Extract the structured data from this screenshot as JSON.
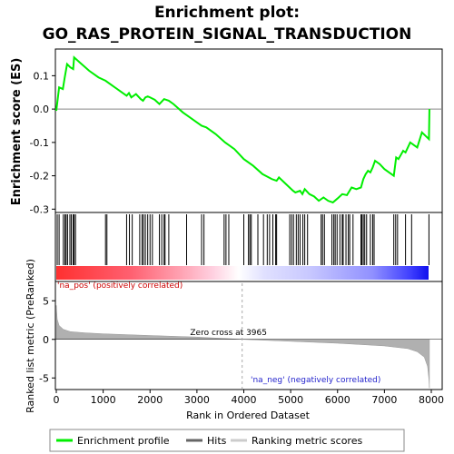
{
  "title_line1": "Enrichment plot:",
  "title_line2": "GO_RAS_PROTEIN_SIGNAL_TRANSDUCTION",
  "chart_data": {
    "type": "line",
    "x_label": "Rank in Ordered Dataset",
    "x_range": [
      0,
      8000
    ],
    "x_ticks": [
      "0",
      "1000",
      "2000",
      "3000",
      "4000",
      "5000",
      "6000",
      "7000",
      "8000"
    ],
    "x_tick_values": [
      0,
      1000,
      2000,
      3000,
      4000,
      5000,
      6000,
      7000,
      8000
    ],
    "top_panel": {
      "ylabel": "Enrichment score (ES)",
      "ylim": [
        -0.31,
        0.18
      ],
      "y_ticks": [
        "0.1",
        "0.0",
        "-0.1",
        "-0.2",
        "-0.3"
      ],
      "y_tick_values": [
        0.1,
        0.0,
        -0.1,
        -0.2,
        -0.3
      ],
      "line_color": "#00ee00",
      "series": [
        {
          "name": "Enrichment profile",
          "x": [
            0,
            60,
            140,
            180,
            230,
            300,
            360,
            380,
            500,
            700,
            900,
            1050,
            1200,
            1350,
            1500,
            1550,
            1600,
            1700,
            1800,
            1850,
            1900,
            1950,
            2000,
            2100,
            2200,
            2300,
            2400,
            2500,
            2700,
            2850,
            3000,
            3100,
            3200,
            3400,
            3600,
            3800,
            4000,
            4200,
            4400,
            4600,
            4700,
            4750,
            4900,
            5050,
            5100,
            5200,
            5250,
            5300,
            5400,
            5500,
            5600,
            5700,
            5800,
            5900,
            6000,
            6100,
            6200,
            6300,
            6400,
            6500,
            6550,
            6600,
            6650,
            6700,
            6750,
            6800,
            6900,
            7000,
            7100,
            7200,
            7250,
            7300,
            7400,
            7450,
            7550,
            7650,
            7700,
            7800,
            7950,
            7960
          ],
          "y": [
            -0.005,
            0.065,
            0.06,
            0.095,
            0.135,
            0.125,
            0.12,
            0.155,
            0.14,
            0.115,
            0.095,
            0.085,
            0.07,
            0.055,
            0.04,
            0.048,
            0.035,
            0.045,
            0.03,
            0.025,
            0.035,
            0.038,
            0.035,
            0.028,
            0.015,
            0.03,
            0.025,
            0.015,
            -0.01,
            -0.025,
            -0.04,
            -0.05,
            -0.055,
            -0.075,
            -0.1,
            -0.12,
            -0.15,
            -0.17,
            -0.195,
            -0.21,
            -0.215,
            -0.205,
            -0.225,
            -0.245,
            -0.25,
            -0.245,
            -0.255,
            -0.24,
            -0.255,
            -0.262,
            -0.275,
            -0.265,
            -0.275,
            -0.28,
            -0.268,
            -0.255,
            -0.258,
            -0.235,
            -0.24,
            -0.235,
            -0.21,
            -0.195,
            -0.185,
            -0.19,
            -0.175,
            -0.155,
            -0.165,
            -0.18,
            -0.19,
            -0.2,
            -0.145,
            -0.15,
            -0.125,
            -0.13,
            -0.1,
            -0.11,
            -0.115,
            -0.07,
            -0.09,
            0.0
          ]
        }
      ]
    },
    "hits_panel": {
      "hit_ranks": [
        20,
        60,
        150,
        185,
        210,
        240,
        290,
        320,
        360,
        380,
        410,
        1050,
        1080,
        1500,
        1560,
        1620,
        1780,
        1830,
        1860,
        1900,
        1950,
        2000,
        2050,
        2200,
        2250,
        2300,
        2320,
        2400,
        2780,
        3100,
        3150,
        3580,
        3620,
        3680,
        4000,
        4100,
        4130,
        4160,
        4300,
        4420,
        4500,
        4550,
        4620,
        4680,
        4700,
        4980,
        5020,
        5060,
        5120,
        5160,
        5200,
        5260,
        5300,
        5360,
        5650,
        5680,
        5720,
        5880,
        5920,
        5950,
        5990,
        6050,
        6100,
        6120,
        6180,
        6230,
        6260,
        6330,
        6500,
        6520,
        6550,
        6580,
        6620,
        6700,
        6750,
        6780,
        7200,
        7240,
        7280,
        7450,
        7580,
        7950
      ],
      "heatmap_label_pos": "'na_pos' (positively correlated)"
    },
    "bottom_panel": {
      "ylabel": "Ranked list metric (PreRanked)",
      "ylim": [
        -6.5,
        7.5
      ],
      "y_ticks": [
        "5",
        "0",
        "-5"
      ],
      "y_tick_values": [
        5,
        0,
        -5
      ],
      "zero_cross_label": "Zero cross at 3965",
      "zero_cross_rank": 3965,
      "neg_label": "'na_neg' (negatively correlated)",
      "metric_profile": {
        "x": [
          0,
          20,
          60,
          150,
          300,
          600,
          1000,
          2000,
          3000,
          3965,
          5000,
          6000,
          7000,
          7500,
          7700,
          7850,
          7920,
          7950,
          7960
        ],
        "y": [
          4.4,
          2.6,
          1.8,
          1.3,
          1.0,
          0.85,
          0.72,
          0.5,
          0.3,
          0.0,
          -0.25,
          -0.5,
          -0.85,
          -1.2,
          -1.6,
          -2.3,
          -3.5,
          -5.2,
          -6.3
        ]
      }
    },
    "legend": {
      "placement": "bottom",
      "items": [
        {
          "label": "Enrichment profile",
          "color": "#00ee00"
        },
        {
          "label": "Hits",
          "color": "#666666"
        },
        {
          "label": "Ranking metric scores",
          "color": "#cccccc"
        }
      ]
    }
  }
}
